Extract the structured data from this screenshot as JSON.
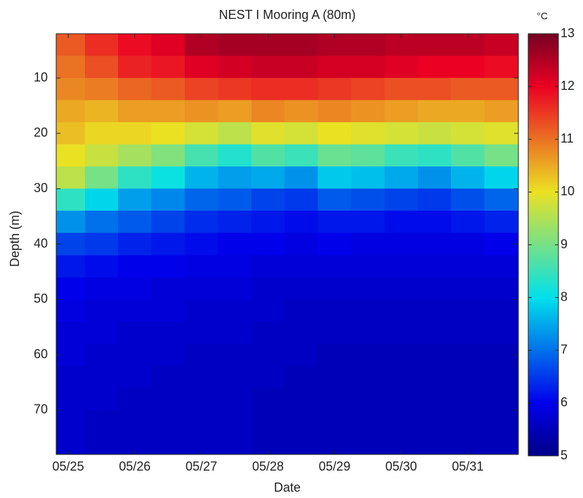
{
  "chart_data": {
    "type": "heatmap",
    "title": "NEST I Mooring A (80m)",
    "x_label": "Date",
    "y_label": "Depth (m)",
    "colorbar_label": "°C",
    "colormap": "jet",
    "xlim": [
      24.82,
      31.76
    ],
    "xticks": [
      {
        "value": 25,
        "label": "05/25"
      },
      {
        "value": 26,
        "label": "05/26"
      },
      {
        "value": 27,
        "label": "05/27"
      },
      {
        "value": 28,
        "label": "05/28"
      },
      {
        "value": 29,
        "label": "05/29"
      },
      {
        "value": 30,
        "label": "05/30"
      },
      {
        "value": 31,
        "label": "05/31"
      }
    ],
    "ylim": [
      2,
      78
    ],
    "y_reversed": true,
    "yticks": [
      10,
      20,
      30,
      40,
      50,
      60,
      70
    ],
    "clim": [
      5,
      13
    ],
    "cticks": [
      5,
      6,
      7,
      8,
      9,
      10,
      11,
      12,
      13
    ],
    "x": [
      25.0,
      25.5,
      26.0,
      26.5,
      27.0,
      27.5,
      28.0,
      28.5,
      29.0,
      29.5,
      30.0,
      30.5,
      31.0,
      31.5
    ],
    "y": [
      4,
      8,
      12,
      16,
      20,
      24,
      28,
      32,
      36,
      40,
      44,
      48,
      52,
      56,
      60,
      64,
      68,
      72,
      76
    ],
    "values": [
      [
        11.2,
        11.0,
        10.8,
        10.5,
        10.3,
        10.0,
        9.6,
        8.4,
        7.3,
        6.6,
        6.2,
        6.0,
        5.9,
        5.8,
        5.8,
        5.7,
        5.7,
        5.7,
        5.7
      ],
      [
        11.6,
        11.3,
        10.9,
        10.4,
        10.1,
        9.7,
        9.0,
        7.9,
        7.0,
        6.5,
        6.1,
        5.9,
        5.8,
        5.8,
        5.7,
        5.7,
        5.7,
        5.6,
        5.6
      ],
      [
        11.9,
        11.7,
        11.1,
        10.6,
        10.1,
        9.4,
        8.4,
        7.4,
        6.8,
        6.3,
        6.0,
        5.9,
        5.8,
        5.7,
        5.7,
        5.7,
        5.6,
        5.6,
        5.6
      ],
      [
        12.1,
        11.8,
        11.2,
        10.6,
        10.0,
        9.1,
        8.1,
        7.2,
        6.6,
        6.2,
        6.0,
        5.8,
        5.8,
        5.7,
        5.7,
        5.6,
        5.6,
        5.6,
        5.6
      ],
      [
        12.5,
        12.1,
        11.4,
        10.7,
        9.8,
        8.6,
        7.6,
        6.9,
        6.4,
        6.1,
        5.9,
        5.8,
        5.7,
        5.7,
        5.6,
        5.6,
        5.6,
        5.6,
        5.6
      ],
      [
        12.6,
        12.2,
        11.5,
        10.6,
        9.6,
        8.3,
        7.4,
        6.8,
        6.3,
        6.0,
        5.9,
        5.8,
        5.7,
        5.7,
        5.6,
        5.6,
        5.6,
        5.6,
        5.6
      ],
      [
        12.6,
        12.3,
        11.6,
        10.8,
        9.9,
        8.7,
        7.5,
        6.6,
        6.2,
        6.0,
        5.8,
        5.7,
        5.7,
        5.6,
        5.6,
        5.6,
        5.5,
        5.5,
        5.5
      ],
      [
        12.6,
        12.3,
        11.6,
        10.7,
        9.8,
        8.5,
        7.3,
        6.5,
        6.1,
        5.9,
        5.8,
        5.7,
        5.6,
        5.6,
        5.6,
        5.5,
        5.5,
        5.5,
        5.5
      ],
      [
        12.5,
        12.2,
        11.5,
        10.8,
        10.0,
        8.9,
        7.8,
        6.8,
        6.2,
        6.0,
        5.8,
        5.7,
        5.6,
        5.6,
        5.5,
        5.5,
        5.5,
        5.5,
        5.5
      ],
      [
        12.5,
        12.2,
        11.4,
        10.7,
        9.9,
        8.8,
        7.7,
        6.7,
        6.2,
        5.9,
        5.8,
        5.7,
        5.6,
        5.6,
        5.5,
        5.5,
        5.5,
        5.5,
        5.5
      ],
      [
        12.4,
        12.1,
        11.3,
        10.6,
        9.8,
        8.5,
        7.5,
        6.6,
        6.1,
        5.9,
        5.8,
        5.7,
        5.6,
        5.6,
        5.5,
        5.5,
        5.5,
        5.5,
        5.5
      ],
      [
        12.4,
        12.0,
        11.3,
        10.5,
        9.7,
        8.4,
        7.3,
        6.5,
        6.1,
        5.9,
        5.8,
        5.7,
        5.6,
        5.6,
        5.5,
        5.5,
        5.5,
        5.5,
        5.5
      ],
      [
        12.4,
        12.0,
        11.2,
        10.5,
        9.8,
        8.7,
        7.6,
        6.7,
        6.2,
        5.9,
        5.8,
        5.7,
        5.6,
        5.6,
        5.5,
        5.5,
        5.5,
        5.5,
        5.5
      ],
      [
        12.3,
        11.9,
        11.2,
        10.6,
        9.9,
        9.0,
        7.9,
        6.9,
        6.3,
        6.0,
        5.8,
        5.7,
        5.6,
        5.6,
        5.5,
        5.5,
        5.5,
        5.5,
        5.5
      ]
    ]
  }
}
